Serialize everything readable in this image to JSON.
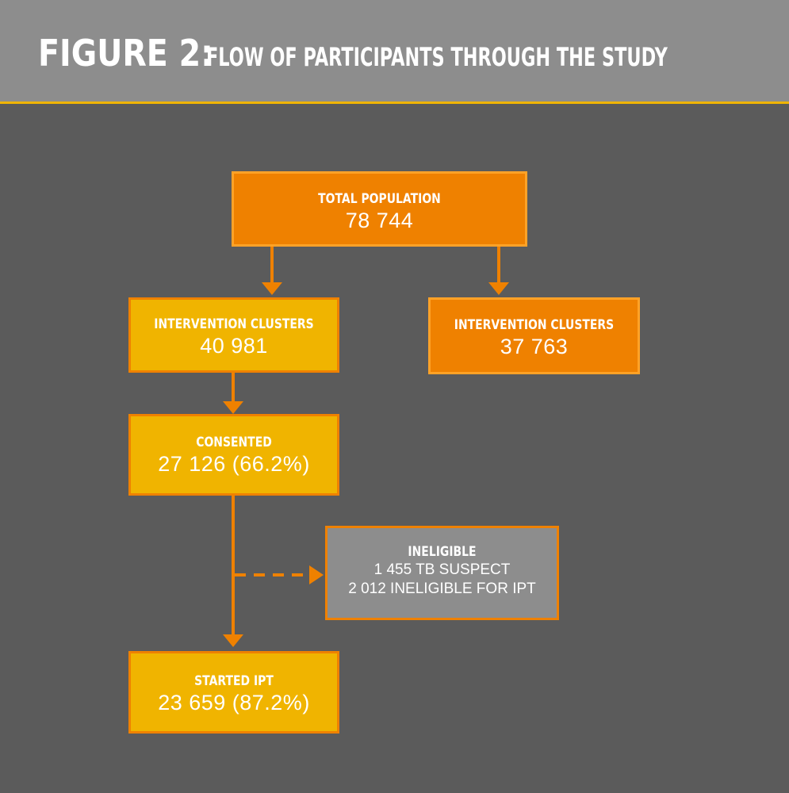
{
  "header": {
    "figure_label": "FIGURE 2:",
    "figure_title": "FLOW OF PARTICIPANTS THROUGH THE STUDY"
  },
  "nodes": {
    "total_population": {
      "label": "TOTAL POPULATION",
      "value": "78 744"
    },
    "intervention_clusters_left": {
      "label": "INTERVENTION CLUSTERS",
      "value": "40 981"
    },
    "intervention_clusters_right": {
      "label": "INTERVENTION CLUSTERS",
      "value": "37 763"
    },
    "consented": {
      "label": "CONSENTED",
      "value": "27 126 (66.2%)"
    },
    "ineligible": {
      "label": "INELIGIBLE",
      "lines": [
        "1 455 TB SUSPECT",
        "2 012 INELIGIBLE FOR IPT"
      ]
    },
    "started_ipt": {
      "label": "STARTED IPT",
      "value": "23 659 (87.2%)"
    }
  },
  "colors": {
    "background": "#5b5b5b",
    "header": "#8d8d8d",
    "accent_yellow": "#f0b400",
    "accent_orange": "#ef8100",
    "ineligible_grey": "#8d8d8d"
  }
}
